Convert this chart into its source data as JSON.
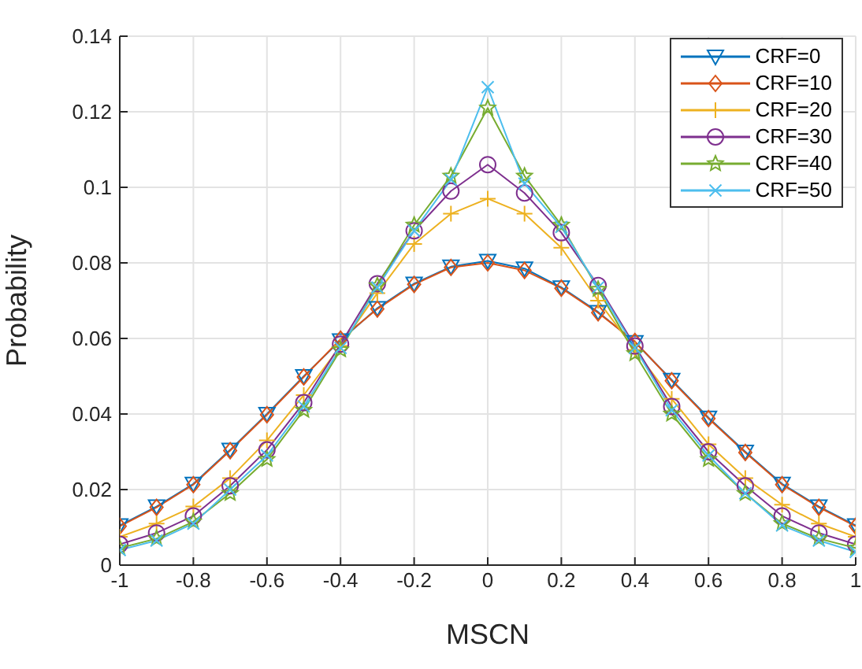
{
  "chart_data": {
    "type": "line",
    "xlabel": "MSCN",
    "ylabel": "Probability",
    "x": [
      -1,
      -0.9,
      -0.8,
      -0.7,
      -0.6,
      -0.5,
      -0.4,
      -0.3,
      -0.2,
      -0.1,
      0,
      0.1,
      0.2,
      0.3,
      0.4,
      0.5,
      0.6,
      0.7,
      0.8,
      0.9,
      1
    ],
    "xlim": [
      -1,
      1
    ],
    "xticks": [
      -1,
      -0.8,
      -0.6,
      -0.4,
      -0.2,
      0,
      0.2,
      0.4,
      0.6,
      0.8,
      1
    ],
    "ylim": [
      0,
      0.14
    ],
    "yticks": [
      0,
      0.02,
      0.04,
      0.06,
      0.08,
      0.1,
      0.12,
      0.14
    ],
    "grid": true,
    "legend": "top right",
    "line_style": "solid",
    "series": [
      {
        "name": "CRF=0",
        "color": "#0072bd",
        "marker": "triangle",
        "values": [
          0.0105,
          0.0155,
          0.0215,
          0.0305,
          0.04,
          0.05,
          0.0595,
          0.068,
          0.0745,
          0.079,
          0.0805,
          0.0785,
          0.0735,
          0.067,
          0.059,
          0.049,
          0.039,
          0.03,
          0.0215,
          0.0155,
          0.0105
        ]
      },
      {
        "name": "CRF=10",
        "color": "#d95319",
        "marker": "diamond",
        "values": [
          0.0103,
          0.0153,
          0.0213,
          0.0303,
          0.0398,
          0.0498,
          0.0598,
          0.0678,
          0.0743,
          0.0788,
          0.08,
          0.078,
          0.0733,
          0.0668,
          0.0592,
          0.0488,
          0.0388,
          0.0298,
          0.0213,
          0.0153,
          0.0103
        ]
      },
      {
        "name": "CRF=20",
        "color": "#edb120",
        "marker": "plus",
        "values": [
          0.0075,
          0.011,
          0.0155,
          0.023,
          0.033,
          0.045,
          0.058,
          0.072,
          0.085,
          0.093,
          0.097,
          0.093,
          0.084,
          0.07,
          0.057,
          0.044,
          0.032,
          0.023,
          0.016,
          0.011,
          0.0075
        ]
      },
      {
        "name": "CRF=30",
        "color": "#7e2f8e",
        "marker": "circle",
        "values": [
          0.0055,
          0.0085,
          0.013,
          0.021,
          0.0305,
          0.043,
          0.0585,
          0.0745,
          0.0885,
          0.099,
          0.106,
          0.0985,
          0.088,
          0.074,
          0.058,
          0.042,
          0.03,
          0.021,
          0.013,
          0.0085,
          0.0055
        ]
      },
      {
        "name": "CRF=40",
        "color": "#77ac30",
        "marker": "star",
        "values": [
          0.0045,
          0.007,
          0.0115,
          0.019,
          0.028,
          0.041,
          0.057,
          0.074,
          0.09,
          0.103,
          0.121,
          0.103,
          0.09,
          0.073,
          0.056,
          0.04,
          0.028,
          0.019,
          0.011,
          0.007,
          0.0045
        ]
      },
      {
        "name": "CRF=50",
        "color": "#4dbeee",
        "marker": "cross",
        "values": [
          0.004,
          0.0065,
          0.011,
          0.02,
          0.029,
          0.042,
          0.0575,
          0.0735,
          0.0885,
          0.102,
          0.1265,
          0.101,
          0.0895,
          0.0735,
          0.0575,
          0.041,
          0.029,
          0.019,
          0.0105,
          0.0065,
          0.0035
        ]
      }
    ]
  }
}
